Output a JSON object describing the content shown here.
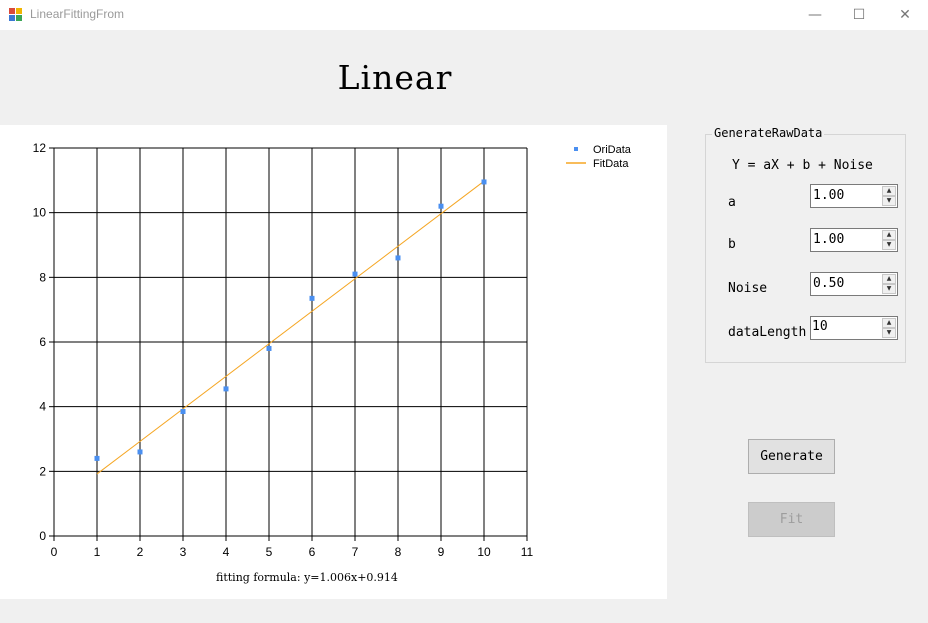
{
  "window": {
    "title": "LinearFittingFrom",
    "minimize_glyph": "—",
    "maximize_glyph": "☐",
    "close_glyph": "✕"
  },
  "heading": "Linear",
  "chart_data": {
    "type": "scatter",
    "xlim": [
      0,
      11
    ],
    "ylim": [
      0,
      12
    ],
    "x_ticks": [
      0,
      1,
      2,
      3,
      4,
      5,
      6,
      7,
      8,
      9,
      10,
      11
    ],
    "y_ticks": [
      0,
      2,
      4,
      6,
      8,
      10,
      12
    ],
    "grid": true,
    "legend_position": "top-right",
    "series": [
      {
        "name": "OriData",
        "kind": "points",
        "color": "#4a8ff0",
        "x": [
          1,
          2,
          3,
          4,
          5,
          6,
          7,
          8,
          9,
          10
        ],
        "y": [
          2.4,
          2.6,
          3.85,
          4.55,
          5.8,
          7.35,
          8.1,
          8.6,
          10.2,
          10.95
        ]
      },
      {
        "name": "FitData",
        "kind": "line",
        "color": "#f5a623",
        "x": [
          1,
          10
        ],
        "y": [
          1.92,
          10.974
        ]
      }
    ],
    "annotation": "fitting formula: y=1.006x+0.914"
  },
  "generator": {
    "group_title": "GenerateRawData",
    "equation": "Y = aX + b + Noise",
    "params": [
      {
        "label": "a",
        "value": "1.00"
      },
      {
        "label": "b",
        "value": "1.00"
      },
      {
        "label": "Noise",
        "value": "0.50"
      },
      {
        "label": "dataLength",
        "value": "10"
      }
    ]
  },
  "buttons": {
    "generate": "Generate",
    "fit": "Fit"
  }
}
